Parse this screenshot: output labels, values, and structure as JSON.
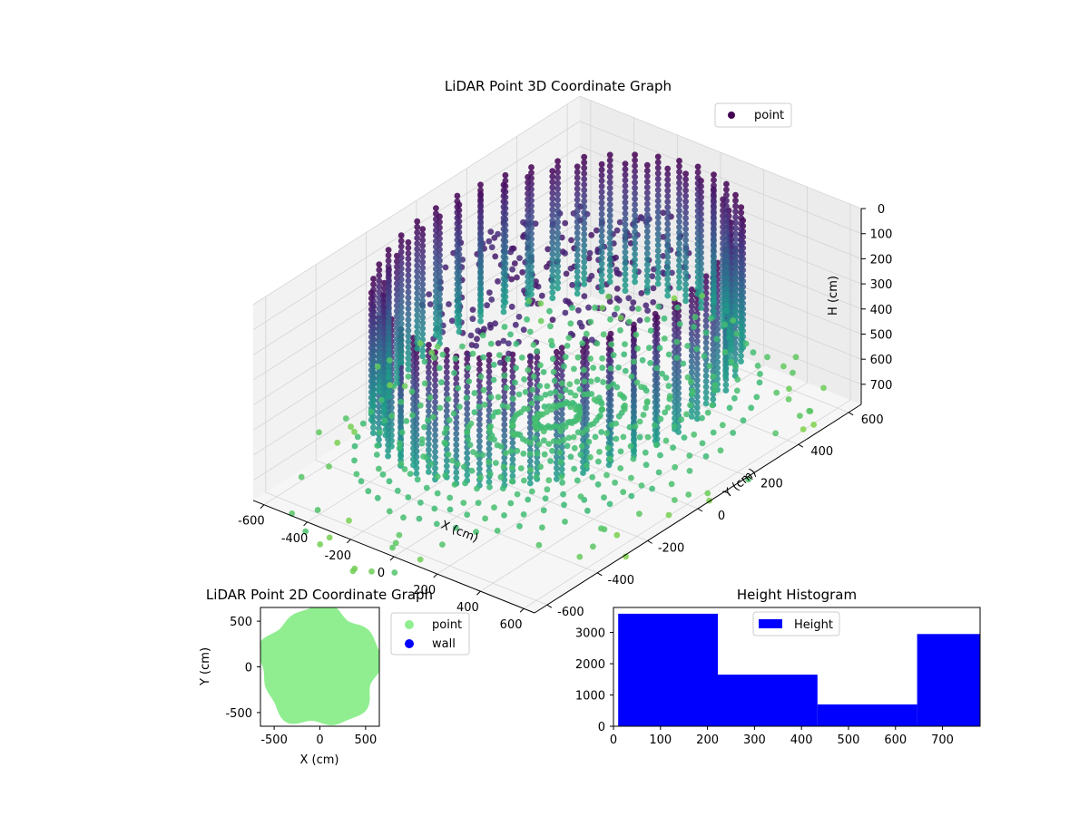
{
  "chart_data": [
    {
      "type": "scatter",
      "projection": "3d",
      "title": "LiDAR Point 3D Coordinate Graph",
      "xlabel": "X (cm)",
      "ylabel": "Y (cm)",
      "zlabel": "H (cm)",
      "xlim": [
        -650,
        650
      ],
      "ylim": [
        -650,
        650
      ],
      "zlim": [
        780,
        0
      ],
      "z_inverted": true,
      "x_ticks": [
        "-600",
        "-400",
        "-200",
        "0",
        "200",
        "400",
        "600"
      ],
      "y_ticks": [
        "-600",
        "-400",
        "-200",
        "0",
        "200",
        "400",
        "600"
      ],
      "z_ticks": [
        "0",
        "100",
        "200",
        "300",
        "400",
        "500",
        "600",
        "700"
      ],
      "colormap": "viridis",
      "legend": {
        "position": "top-right",
        "entries": [
          "point"
        ],
        "color": "#440154"
      },
      "series": [
        {
          "name": "point",
          "shape": "cylindrical scan: vertical columns on a ring (radius ~560 cm), radial floor rays, low central cap",
          "ring_radius": 560,
          "columns": 44,
          "column_z_range": [
            0,
            500
          ],
          "floor_rays": 56,
          "floor_z": 640,
          "color_by": "height"
        }
      ],
      "grid": true
    },
    {
      "type": "scatter",
      "title": "LiDAR Point 2D Coordinate Graph",
      "xlabel": "X (cm)",
      "ylabel": "Y (cm)",
      "xlim": [
        -650,
        650
      ],
      "ylim": [
        -650,
        650
      ],
      "x_ticks": [
        "-500",
        "0",
        "500"
      ],
      "y_ticks": [
        "-500",
        "0",
        "500"
      ],
      "legend": {
        "position": "outside-right"
      },
      "series": [
        {
          "name": "point",
          "color": "#90ee90",
          "region": "filled disc, radius ~650 cm"
        },
        {
          "name": "wall",
          "color": "#0000ff",
          "points": []
        }
      ]
    },
    {
      "type": "bar",
      "subtype": "histogram",
      "title": "Height Histogram",
      "xlim": [
        0,
        780
      ],
      "ylim": [
        0,
        3800
      ],
      "x_ticks": [
        "0",
        "100",
        "200",
        "300",
        "400",
        "500",
        "600",
        "700"
      ],
      "y_ticks": [
        "0",
        "1000",
        "2000",
        "3000"
      ],
      "legend": {
        "position": "top-center",
        "entries": [
          "Height"
        ]
      },
      "color": "#0000ff",
      "bins": [
        {
          "x0": 10,
          "x1": 222,
          "count": 3600
        },
        {
          "x0": 222,
          "x1": 434,
          "count": 1650
        },
        {
          "x0": 434,
          "x1": 646,
          "count": 700
        },
        {
          "x0": 646,
          "x1": 780,
          "count": 2950
        }
      ],
      "series": [
        {
          "name": "Height"
        }
      ]
    }
  ]
}
